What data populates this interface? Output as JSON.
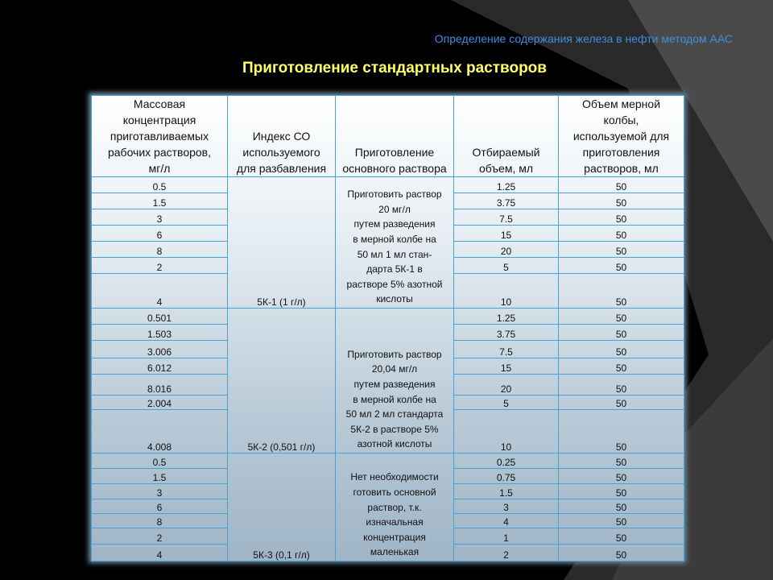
{
  "header": {
    "subtitle": "Определение  содержания железа в нефти методом ААС",
    "title": "Приготовление  стандартных  растворов"
  },
  "table": {
    "columns": [
      "Массовая\nконцентрация\nприготавливаемых\nрабочих растворов,\nмг/л",
      "Индекс СО\nиспользуемого\nдля разбавления",
      "Приготовление\nосновного раствора",
      "Отбираемый\nобъем, мл",
      "Объем мерной\nколбы,\nиспользуемой для\nприготовления\nрастворов, мл"
    ],
    "groups": [
      {
        "index": "5К-1 (1 г/л)",
        "preparation": "Приготовить  раствор\n20 мг/л\nпутем  разведения\n в мерной  колбе  на\n50 мл  1 мл  стан-\nдарта  5К-1 в\nрастворе  5% азотной\nкислоты",
        "rows": [
          [
            "0.5",
            "1.25",
            "50"
          ],
          [
            "1.5",
            "3.75",
            "50"
          ],
          [
            "3",
            "7.5",
            "50"
          ],
          [
            "6",
            "15",
            "50"
          ],
          [
            "8",
            "20",
            "50"
          ],
          [
            "2",
            "5",
            "50"
          ],
          [
            "4",
            "10",
            "50"
          ]
        ]
      },
      {
        "index": "5К-2 (0,501 г/л)",
        "preparation": "Приготовить  раствор\n20,04  мг/л\nпутем  разведения\n в мерной  колбе  на\n50 мл  2 мл  стандарта\n5К-2 в  растворе  5%\nазотной  кислоты",
        "rows": [
          [
            "0.501",
            "1.25",
            "50"
          ],
          [
            "1.503",
            "3.75",
            "50"
          ],
          [
            "3.006",
            "7.5",
            "50"
          ],
          [
            "6.012",
            "15",
            "50"
          ],
          [
            "8.016",
            "20",
            "50"
          ],
          [
            "2.004",
            "5",
            "50"
          ],
          [
            "4.008",
            "10",
            "50"
          ]
        ]
      },
      {
        "index": "5К-3 (0,1 г/л)",
        "preparation": "Нет  необходимости\nготовить  основной\nраствор,  т.к.\nизначальная\nконцентрация\nмаленькая",
        "rows": [
          [
            "0.5",
            "0.25",
            "50"
          ],
          [
            "1.5",
            "0.75",
            "50"
          ],
          [
            "3",
            "1.5",
            "50"
          ],
          [
            "6",
            "3",
            "50"
          ],
          [
            "8",
            "4",
            "50"
          ],
          [
            "2",
            "1",
            "50"
          ],
          [
            "4",
            "2",
            "50"
          ]
        ]
      }
    ]
  }
}
